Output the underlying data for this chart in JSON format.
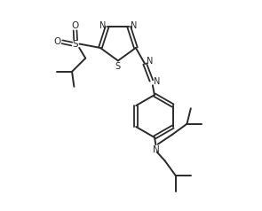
{
  "bg_color": "#ffffff",
  "line_color": "#2a2a2a",
  "text_color": "#2a2a2a",
  "figsize": [
    2.95,
    2.38
  ],
  "dpi": 100,
  "xlim": [
    0,
    10
  ],
  "ylim": [
    0,
    8.1
  ]
}
